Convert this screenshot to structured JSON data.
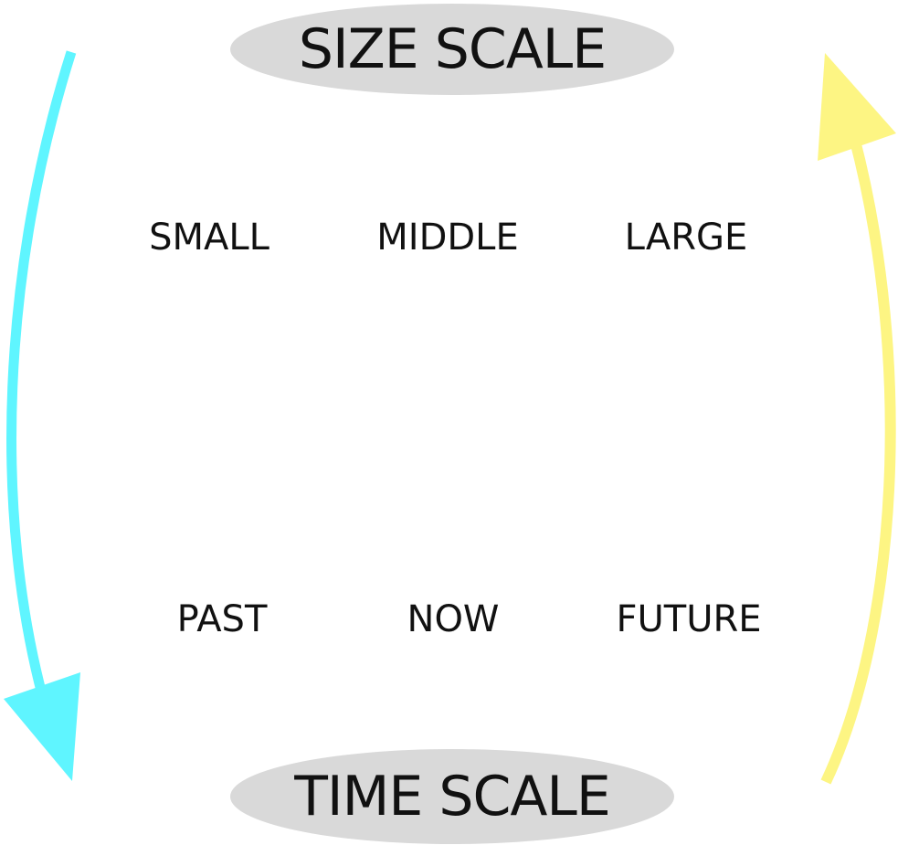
{
  "size_scale": {
    "label": "SIZE SCALE",
    "items": [
      "SMALL",
      "MIDDLE",
      "LARGE"
    ]
  },
  "time_scale": {
    "label": "TIME SCALE",
    "items": [
      "PAST",
      "NOW",
      "FUTURE"
    ]
  },
  "colors": {
    "pill_fill": "#d9d9d9",
    "text": "#111111",
    "left_arrow": "#5ff5ff",
    "right_arrow": "#fdf583",
    "background": "#ffffff"
  },
  "arrows": {
    "left": {
      "icon": "down-arrow-icon",
      "direction": "down"
    },
    "right": {
      "icon": "up-arrow-icon",
      "direction": "up"
    }
  }
}
